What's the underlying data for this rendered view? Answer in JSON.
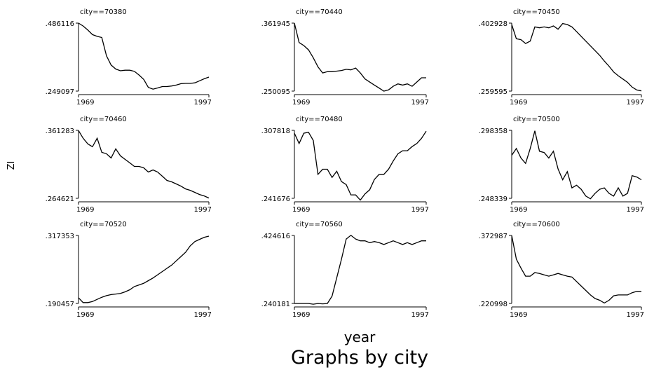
{
  "chart_data": {
    "type": "line",
    "title": "",
    "ylabel": "ZI",
    "xlabel": "year",
    "caption": "Graphs by city",
    "panels": [
      {
        "title": "city==70380",
        "xticks": [
          "1969",
          "1997"
        ],
        "xlim": [
          1969,
          1997
        ],
        "ylim": [
          0.249097,
          0.486116
        ],
        "yticks": [
          ".486116",
          ".249097"
        ],
        "x": [
          1969,
          1970,
          1971,
          1972,
          1973,
          1974,
          1975,
          1976,
          1977,
          1978,
          1979,
          1980,
          1981,
          1982,
          1983,
          1984,
          1985,
          1986,
          1987,
          1988,
          1989,
          1990,
          1991,
          1992,
          1993,
          1994,
          1995,
          1996,
          1997
        ],
        "values": [
          0.486,
          0.476,
          0.462,
          0.446,
          0.44,
          0.436,
          0.372,
          0.34,
          0.326,
          0.32,
          0.322,
          0.322,
          0.318,
          0.305,
          0.29,
          0.262,
          0.256,
          0.26,
          0.265,
          0.265,
          0.267,
          0.27,
          0.275,
          0.276,
          0.276,
          0.278,
          0.285,
          0.292,
          0.298
        ]
      },
      {
        "title": "city==70440",
        "xticks": [
          "1969",
          "1997"
        ],
        "xlim": [
          1969,
          1997
        ],
        "ylim": [
          0.250095,
          0.361945
        ],
        "yticks": [
          ".361945",
          ".250095"
        ],
        "x": [
          1969,
          1970,
          1971,
          1972,
          1973,
          1974,
          1975,
          1976,
          1977,
          1978,
          1979,
          1980,
          1981,
          1982,
          1983,
          1984,
          1985,
          1986,
          1987,
          1988,
          1989,
          1990,
          1991,
          1992,
          1993,
          1994,
          1995,
          1996,
          1997
        ],
        "values": [
          0.362,
          0.33,
          0.325,
          0.318,
          0.305,
          0.29,
          0.28,
          0.282,
          0.282,
          0.283,
          0.284,
          0.286,
          0.285,
          0.288,
          0.28,
          0.27,
          0.265,
          0.26,
          0.255,
          0.25,
          0.252,
          0.258,
          0.262,
          0.26,
          0.262,
          0.258,
          0.265,
          0.272,
          0.272
        ]
      },
      {
        "title": "city==70450",
        "xticks": [
          "1969",
          "1997"
        ],
        "xlim": [
          1969,
          1997
        ],
        "ylim": [
          0.259595,
          0.402928
        ],
        "yticks": [
          ".402928",
          ".259595"
        ],
        "x": [
          1969,
          1970,
          1971,
          1972,
          1973,
          1974,
          1975,
          1976,
          1977,
          1978,
          1979,
          1980,
          1981,
          1982,
          1983,
          1984,
          1985,
          1986,
          1987,
          1988,
          1989,
          1990,
          1991,
          1992,
          1993,
          1994,
          1995,
          1996,
          1997
        ],
        "values": [
          0.4,
          0.37,
          0.368,
          0.36,
          0.365,
          0.395,
          0.393,
          0.395,
          0.393,
          0.397,
          0.39,
          0.402,
          0.4,
          0.395,
          0.385,
          0.375,
          0.365,
          0.355,
          0.345,
          0.335,
          0.323,
          0.312,
          0.3,
          0.292,
          0.285,
          0.278,
          0.268,
          0.262,
          0.26
        ]
      },
      {
        "title": "city==70460",
        "xticks": [
          "1969",
          "1997"
        ],
        "xlim": [
          1969,
          1997
        ],
        "ylim": [
          0.264621,
          0.361283
        ],
        "yticks": [
          ".361283",
          ".264621"
        ],
        "x": [
          1969,
          1970,
          1971,
          1972,
          1973,
          1974,
          1975,
          1976,
          1977,
          1978,
          1979,
          1980,
          1981,
          1982,
          1983,
          1984,
          1985,
          1986,
          1987,
          1988,
          1989,
          1990,
          1991,
          1992,
          1993,
          1994,
          1995,
          1996,
          1997
        ],
        "values": [
          0.361,
          0.35,
          0.342,
          0.338,
          0.35,
          0.33,
          0.328,
          0.322,
          0.335,
          0.325,
          0.32,
          0.315,
          0.31,
          0.31,
          0.308,
          0.302,
          0.305,
          0.302,
          0.296,
          0.29,
          0.288,
          0.285,
          0.282,
          0.278,
          0.276,
          0.273,
          0.27,
          0.268,
          0.265
        ]
      },
      {
        "title": "city==70480",
        "xticks": [
          "1969",
          "1997"
        ],
        "xlim": [
          1969,
          1997
        ],
        "ylim": [
          0.241676,
          0.307818
        ],
        "yticks": [
          ".307818",
          ".241676"
        ],
        "x": [
          1969,
          1970,
          1971,
          1972,
          1973,
          1974,
          1975,
          1976,
          1977,
          1978,
          1979,
          1980,
          1981,
          1982,
          1983,
          1984,
          1985,
          1986,
          1987,
          1988,
          1989,
          1990,
          1991,
          1992,
          1993,
          1994,
          1995,
          1996,
          1997
        ],
        "values": [
          0.305,
          0.295,
          0.305,
          0.306,
          0.298,
          0.265,
          0.27,
          0.27,
          0.262,
          0.268,
          0.258,
          0.255,
          0.245,
          0.245,
          0.24,
          0.246,
          0.25,
          0.26,
          0.265,
          0.265,
          0.27,
          0.278,
          0.285,
          0.288,
          0.288,
          0.292,
          0.295,
          0.3,
          0.307
        ]
      },
      {
        "title": "city==70500",
        "xticks": [
          "1969",
          "1997"
        ],
        "xlim": [
          1969,
          1997
        ],
        "ylim": [
          0.248339,
          0.298358
        ],
        "yticks": [
          ".298358",
          ".248339"
        ],
        "x": [
          1969,
          1970,
          1971,
          1972,
          1973,
          1974,
          1975,
          1976,
          1977,
          1978,
          1979,
          1980,
          1981,
          1982,
          1983,
          1984,
          1985,
          1986,
          1987,
          1988,
          1989,
          1990,
          1991,
          1992,
          1993,
          1994,
          1995,
          1996,
          1997
        ],
        "values": [
          0.28,
          0.285,
          0.278,
          0.274,
          0.285,
          0.298,
          0.283,
          0.282,
          0.278,
          0.283,
          0.27,
          0.262,
          0.268,
          0.256,
          0.258,
          0.255,
          0.25,
          0.248,
          0.252,
          0.255,
          0.256,
          0.252,
          0.25,
          0.256,
          0.25,
          0.252,
          0.265,
          0.264,
          0.262
        ]
      },
      {
        "title": "city==70520",
        "xticks": [
          "1969",
          "1997"
        ],
        "xlim": [
          1969,
          1997
        ],
        "ylim": [
          0.190457,
          0.317353
        ],
        "yticks": [
          ".317353",
          ".190457"
        ],
        "x": [
          1969,
          1970,
          1971,
          1972,
          1973,
          1974,
          1975,
          1976,
          1977,
          1978,
          1979,
          1980,
          1981,
          1982,
          1983,
          1984,
          1985,
          1986,
          1987,
          1988,
          1989,
          1990,
          1991,
          1992,
          1993,
          1994,
          1995,
          1996,
          1997
        ],
        "values": [
          0.201,
          0.192,
          0.192,
          0.194,
          0.198,
          0.202,
          0.205,
          0.207,
          0.208,
          0.209,
          0.212,
          0.216,
          0.222,
          0.225,
          0.228,
          0.233,
          0.238,
          0.244,
          0.25,
          0.256,
          0.262,
          0.27,
          0.278,
          0.286,
          0.298,
          0.306,
          0.31,
          0.314,
          0.316
        ]
      },
      {
        "title": "city==70560",
        "xticks": [
          "1969",
          "1997"
        ],
        "xlim": [
          1969,
          1997
        ],
        "ylim": [
          0.240181,
          0.424616
        ],
        "yticks": [
          ".424616",
          ".240181"
        ],
        "x": [
          1969,
          1970,
          1971,
          1972,
          1973,
          1974,
          1975,
          1976,
          1977,
          1978,
          1979,
          1980,
          1981,
          1982,
          1983,
          1984,
          1985,
          1986,
          1987,
          1988,
          1989,
          1990,
          1991,
          1992,
          1993,
          1994,
          1995,
          1996,
          1997
        ],
        "values": [
          0.24,
          0.24,
          0.24,
          0.24,
          0.238,
          0.24,
          0.239,
          0.24,
          0.26,
          0.31,
          0.36,
          0.415,
          0.425,
          0.415,
          0.41,
          0.41,
          0.405,
          0.408,
          0.405,
          0.4,
          0.405,
          0.41,
          0.405,
          0.4,
          0.405,
          0.4,
          0.405,
          0.41,
          0.41
        ]
      },
      {
        "title": "city==70600",
        "xticks": [
          "1969",
          "1997"
        ],
        "xlim": [
          1969,
          1997
        ],
        "ylim": [
          0.220998,
          0.372987
        ],
        "yticks": [
          ".372987",
          ".220998"
        ],
        "x": [
          1969,
          1970,
          1971,
          1972,
          1973,
          1974,
          1975,
          1976,
          1977,
          1978,
          1979,
          1980,
          1981,
          1982,
          1983,
          1984,
          1985,
          1986,
          1987,
          1988,
          1989,
          1990,
          1991,
          1992,
          1993,
          1994,
          1995,
          1996,
          1997
        ],
        "values": [
          0.373,
          0.32,
          0.3,
          0.282,
          0.282,
          0.29,
          0.288,
          0.285,
          0.282,
          0.285,
          0.288,
          0.285,
          0.282,
          0.28,
          0.27,
          0.26,
          0.25,
          0.24,
          0.232,
          0.228,
          0.222,
          0.228,
          0.238,
          0.24,
          0.24,
          0.24,
          0.245,
          0.248,
          0.248
        ]
      }
    ]
  }
}
